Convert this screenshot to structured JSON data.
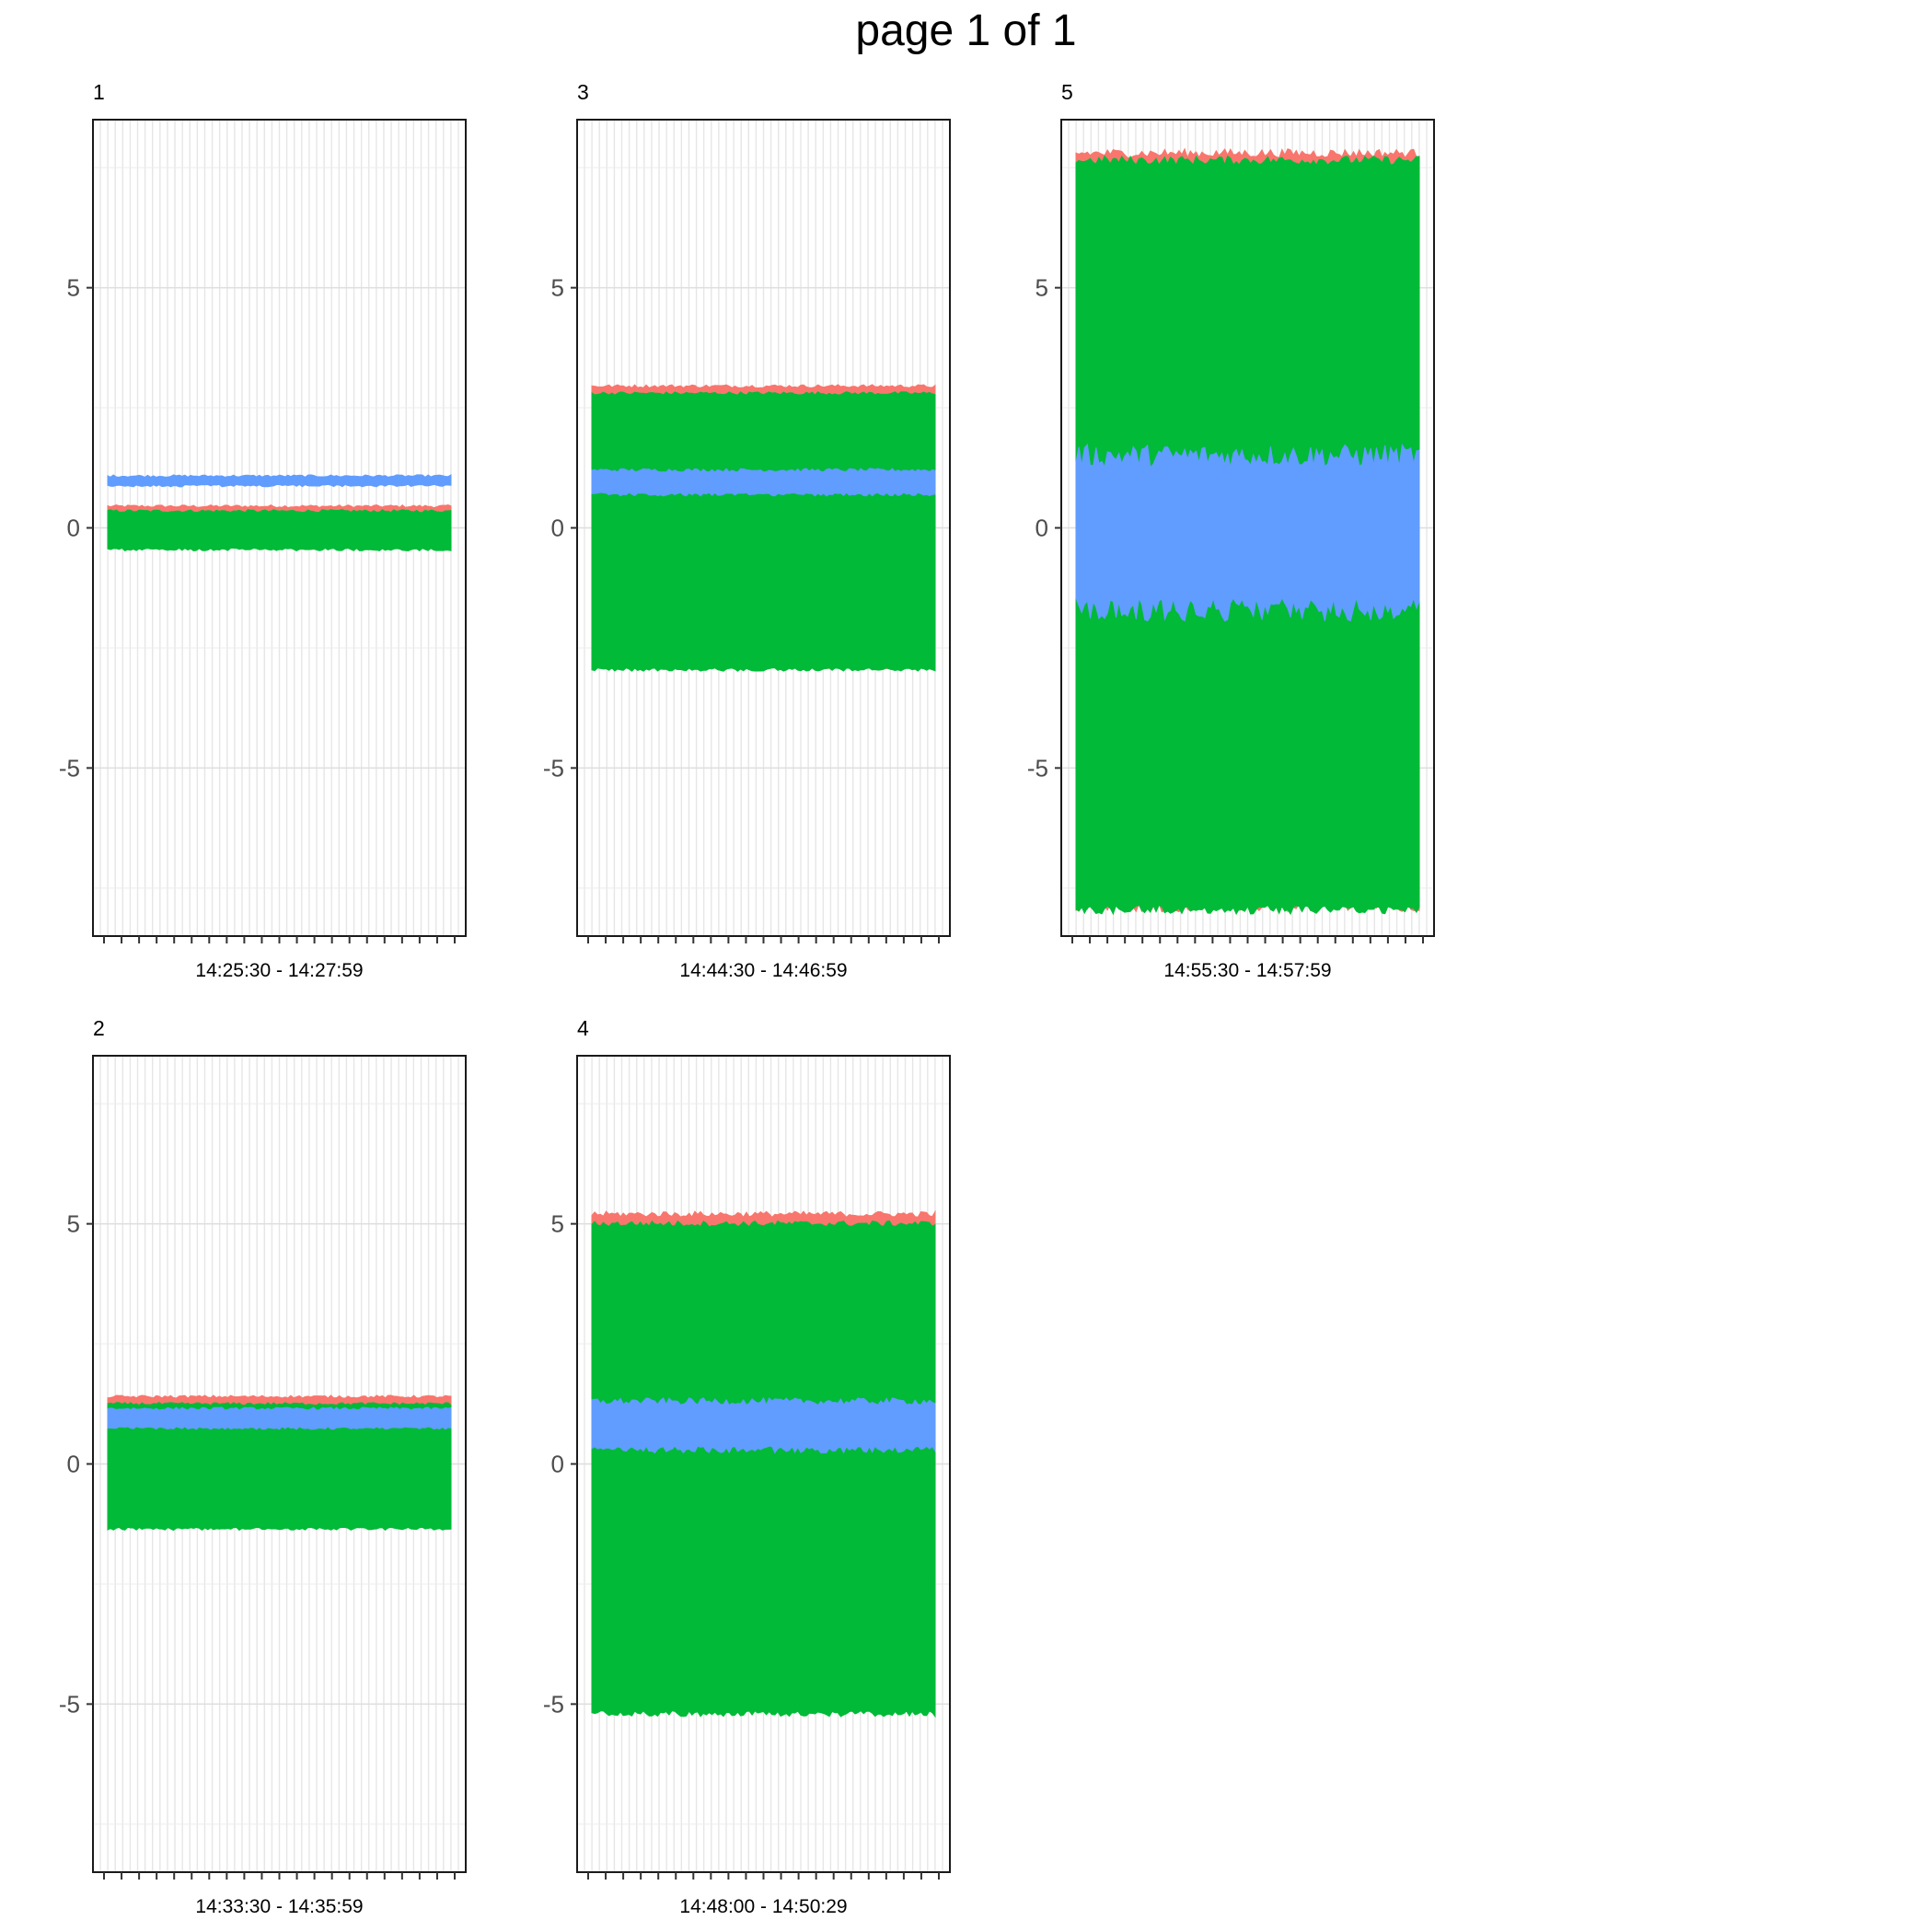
{
  "page_title": "page 1 of 1",
  "chart_data": {
    "type": "area",
    "title": "page 1 of 1",
    "ylim": [
      -8.5,
      8.5
    ],
    "y_ticks": [
      -5,
      0,
      5
    ],
    "grid": true,
    "legend": "none",
    "x_minor_ticks_per_panel": 21,
    "series_colors": {
      "red": "#F8766D",
      "green": "#00BA38",
      "blue": "#619CFF"
    },
    "panels": [
      {
        "label": "1",
        "x_label": "14:25:30 - 14:27:59",
        "red": {
          "min": -0.35,
          "max": 0.45
        },
        "green": {
          "min": -0.45,
          "max": 0.35
        },
        "blue": {
          "min": 0.88,
          "max": 1.08
        }
      },
      {
        "label": "3",
        "x_label": "14:44:30 - 14:46:59",
        "red": {
          "min": -2.9,
          "max": 2.95
        },
        "green": {
          "min": -2.95,
          "max": 2.8
        },
        "blue": {
          "min": 0.7,
          "max": 1.2
        }
      },
      {
        "label": "5",
        "x_label": "14:55:30 - 14:57:59",
        "red": {
          "min": -7.9,
          "max": 7.8
        },
        "green": {
          "min": -7.95,
          "max": 7.65
        },
        "blue": {
          "min": -1.7,
          "max": 1.5
        }
      },
      {
        "label": "2",
        "x_label": "14:33:30 - 14:35:59",
        "red": {
          "min": -1.3,
          "max": 1.4
        },
        "green": {
          "min": -1.35,
          "max": 1.25
        },
        "blue": {
          "min": 0.75,
          "max": 1.15
        }
      },
      {
        "label": "4",
        "x_label": "14:48:00 - 14:50:29",
        "red": {
          "min": -5.1,
          "max": 5.2
        },
        "green": {
          "min": -5.2,
          "max": 5.0
        },
        "blue": {
          "min": 0.3,
          "max": 1.3
        }
      }
    ]
  }
}
